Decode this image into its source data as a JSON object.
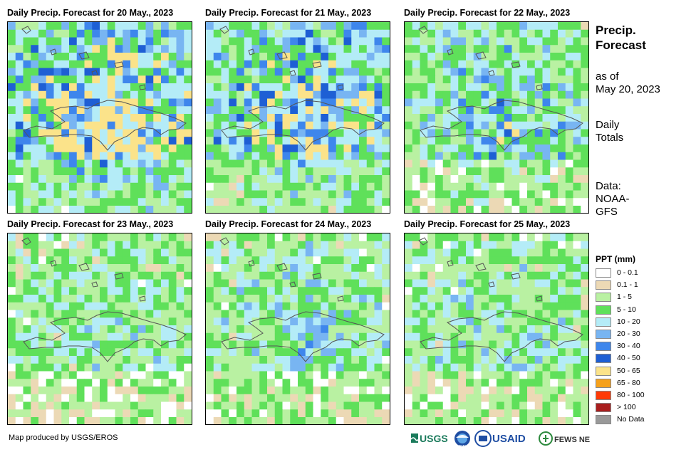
{
  "panels": [
    {
      "title": "Daily Precip. Forecast for 20 May., 2023",
      "seed": 11,
      "wet": 0.95
    },
    {
      "title": "Daily Precip. Forecast for 21 May., 2023",
      "seed": 23,
      "wet": 0.85
    },
    {
      "title": "Daily Precip. Forecast for 22 May., 2023",
      "seed": 37,
      "wet": 0.55
    },
    {
      "title": "Daily Precip. Forecast for 23 May., 2023",
      "seed": 41,
      "wet": 0.3
    },
    {
      "title": "Daily Precip. Forecast for 24 May., 2023",
      "seed": 53,
      "wet": 0.4
    },
    {
      "title": "Daily Precip. Forecast for 25 May., 2023",
      "seed": 67,
      "wet": 0.35
    }
  ],
  "side": {
    "title_line1": "Precip.",
    "title_line2": "Forecast",
    "asof_line1": "as of",
    "asof_line2": "May 20, 2023",
    "daily_line1": "Daily",
    "daily_line2": "Totals",
    "data_line1": "Data:",
    "data_line2": "NOAA-",
    "data_line3": "GFS"
  },
  "legend": {
    "title": "PPT (mm)",
    "items": [
      {
        "label": "0 - 0.1",
        "color": "#ffffff"
      },
      {
        "label": "0.1 - 1",
        "color": "#ecd9b5"
      },
      {
        "label": "1 - 5",
        "color": "#b9f1a2"
      },
      {
        "label": "5 - 10",
        "color": "#5fe05a"
      },
      {
        "label": "10 - 20",
        "color": "#b4ecf7"
      },
      {
        "label": "20 - 30",
        "color": "#78b5f2"
      },
      {
        "label": "30 - 40",
        "color": "#3e86ec"
      },
      {
        "label": "40 - 50",
        "color": "#1e5fd4"
      },
      {
        "label": "50 - 65",
        "color": "#fbe38a"
      },
      {
        "label": "65 - 80",
        "color": "#f6a11b"
      },
      {
        "label": "80 - 100",
        "color": "#ff3a06"
      },
      {
        "label": "> 100",
        "color": "#a91e1e"
      },
      {
        "label": "No Data",
        "color": "#999999"
      }
    ]
  },
  "footer": {
    "credit": "Map produced by USGS/EROS",
    "logos": [
      "USGS",
      "NOAA",
      "USAID",
      "FEWS NET"
    ]
  }
}
